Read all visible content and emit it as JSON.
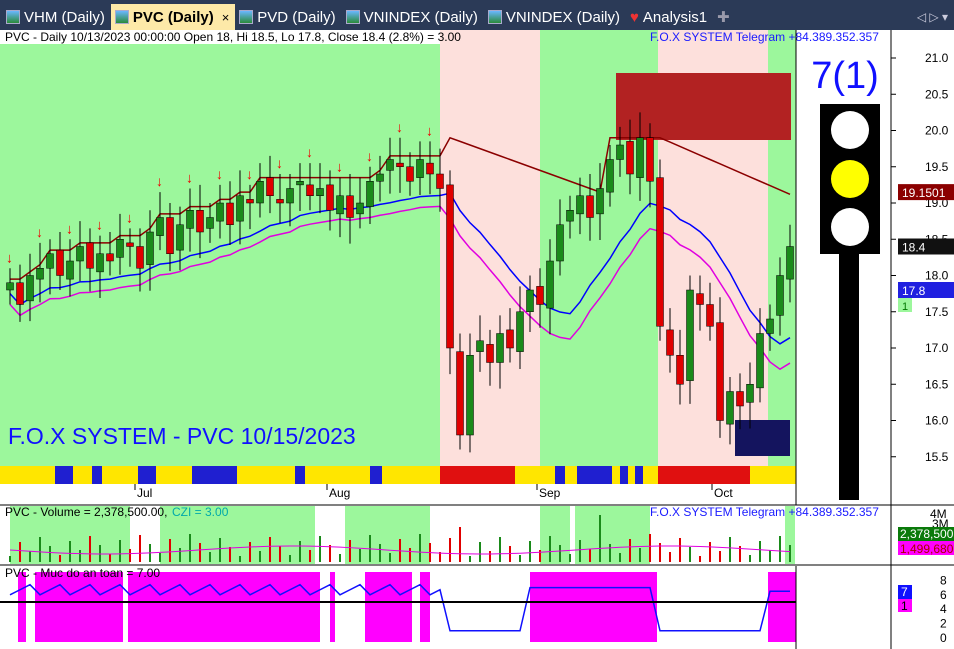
{
  "tabs": [
    {
      "label": "VHM (Daily)"
    },
    {
      "label": "PVC (Daily)",
      "active": true
    },
    {
      "label": "PVD (Daily)"
    },
    {
      "label": "VNINDEX (Daily)"
    },
    {
      "label": "VNINDEX (Daily)"
    },
    {
      "label": "Analysis1"
    }
  ],
  "tab_close": "×",
  "add_tab": "✚",
  "nav_arrows": "◁ ▷ ▾",
  "price_panel": {
    "header": "PVC - Daily 10/13/2023 00:00:00 Open 18, Hi 18.5, Lo 17.8, Close 18.4 (2.8%)   = 3.00",
    "telegram": "F.O.X SYSTEM Telegram +84.389.352.357",
    "watermark": "F.O.X SYSTEM - PVC 10/15/2023",
    "signal": "7(1)",
    "y_ticks": [
      "21.0",
      "20.5",
      "20.0",
      "19.5",
      "19.0",
      "18.5",
      "18.0",
      "17.5",
      "17.0",
      "16.5",
      "16.0",
      "15.5"
    ],
    "x_ticks": [
      "Jul",
      "Aug",
      "Sep",
      "Oct"
    ],
    "last_close": "18.4",
    "resistance": "19.1501",
    "support": "17.8",
    "small_tag": "1",
    "closes": [
      17.9,
      17.6,
      18.0,
      18.1,
      18.3,
      18.0,
      18.2,
      18.4,
      18.1,
      18.3,
      18.2,
      18.5,
      18.4,
      18.1,
      18.6,
      18.8,
      18.3,
      18.7,
      18.9,
      18.6,
      18.8,
      19.0,
      18.7,
      19.1,
      19.0,
      19.3,
      19.1,
      19.0,
      19.2,
      19.3,
      19.1,
      19.2,
      18.9,
      19.1,
      18.8,
      19.0,
      19.3,
      19.4,
      19.6,
      19.5,
      19.3,
      19.6,
      19.4,
      19.2,
      17.0,
      15.8,
      16.9,
      17.1,
      16.8,
      17.2,
      17.0,
      17.5,
      17.8,
      17.6,
      18.2,
      18.7,
      18.9,
      19.1,
      18.8,
      19.2,
      19.6,
      19.8,
      19.4,
      19.9,
      19.3,
      17.3,
      16.9,
      16.5,
      17.8,
      17.6,
      17.3,
      16.0,
      16.4,
      16.2,
      16.5,
      17.2,
      17.4,
      18.0,
      18.4
    ],
    "colors": {
      "bull_zone": "#9cf79c",
      "bear_zone": "#fde0dc",
      "up": "#1a8a1a",
      "down": "#e00000",
      "resistance": "#8b0000",
      "blue_line": "#0000ff",
      "magenta_line": "#e000e0"
    }
  },
  "volume_panel": {
    "header": "PVC - Volume = 2,378,500.00,",
    "czi": "CZI = 3.00",
    "telegram": "F.O.X SYSTEM Telegram +84.389.352.357",
    "y_ticks": [
      "4M",
      "3M"
    ],
    "volume_tag": "2,378,500",
    "ma_tag": "1,499,680"
  },
  "safety_panel": {
    "header": "PVC - Muc do an toan = 7.00",
    "y_ticks": [
      "8",
      "6",
      "4",
      "2",
      "0"
    ],
    "value_tag": "7",
    "small_tag": "1"
  }
}
